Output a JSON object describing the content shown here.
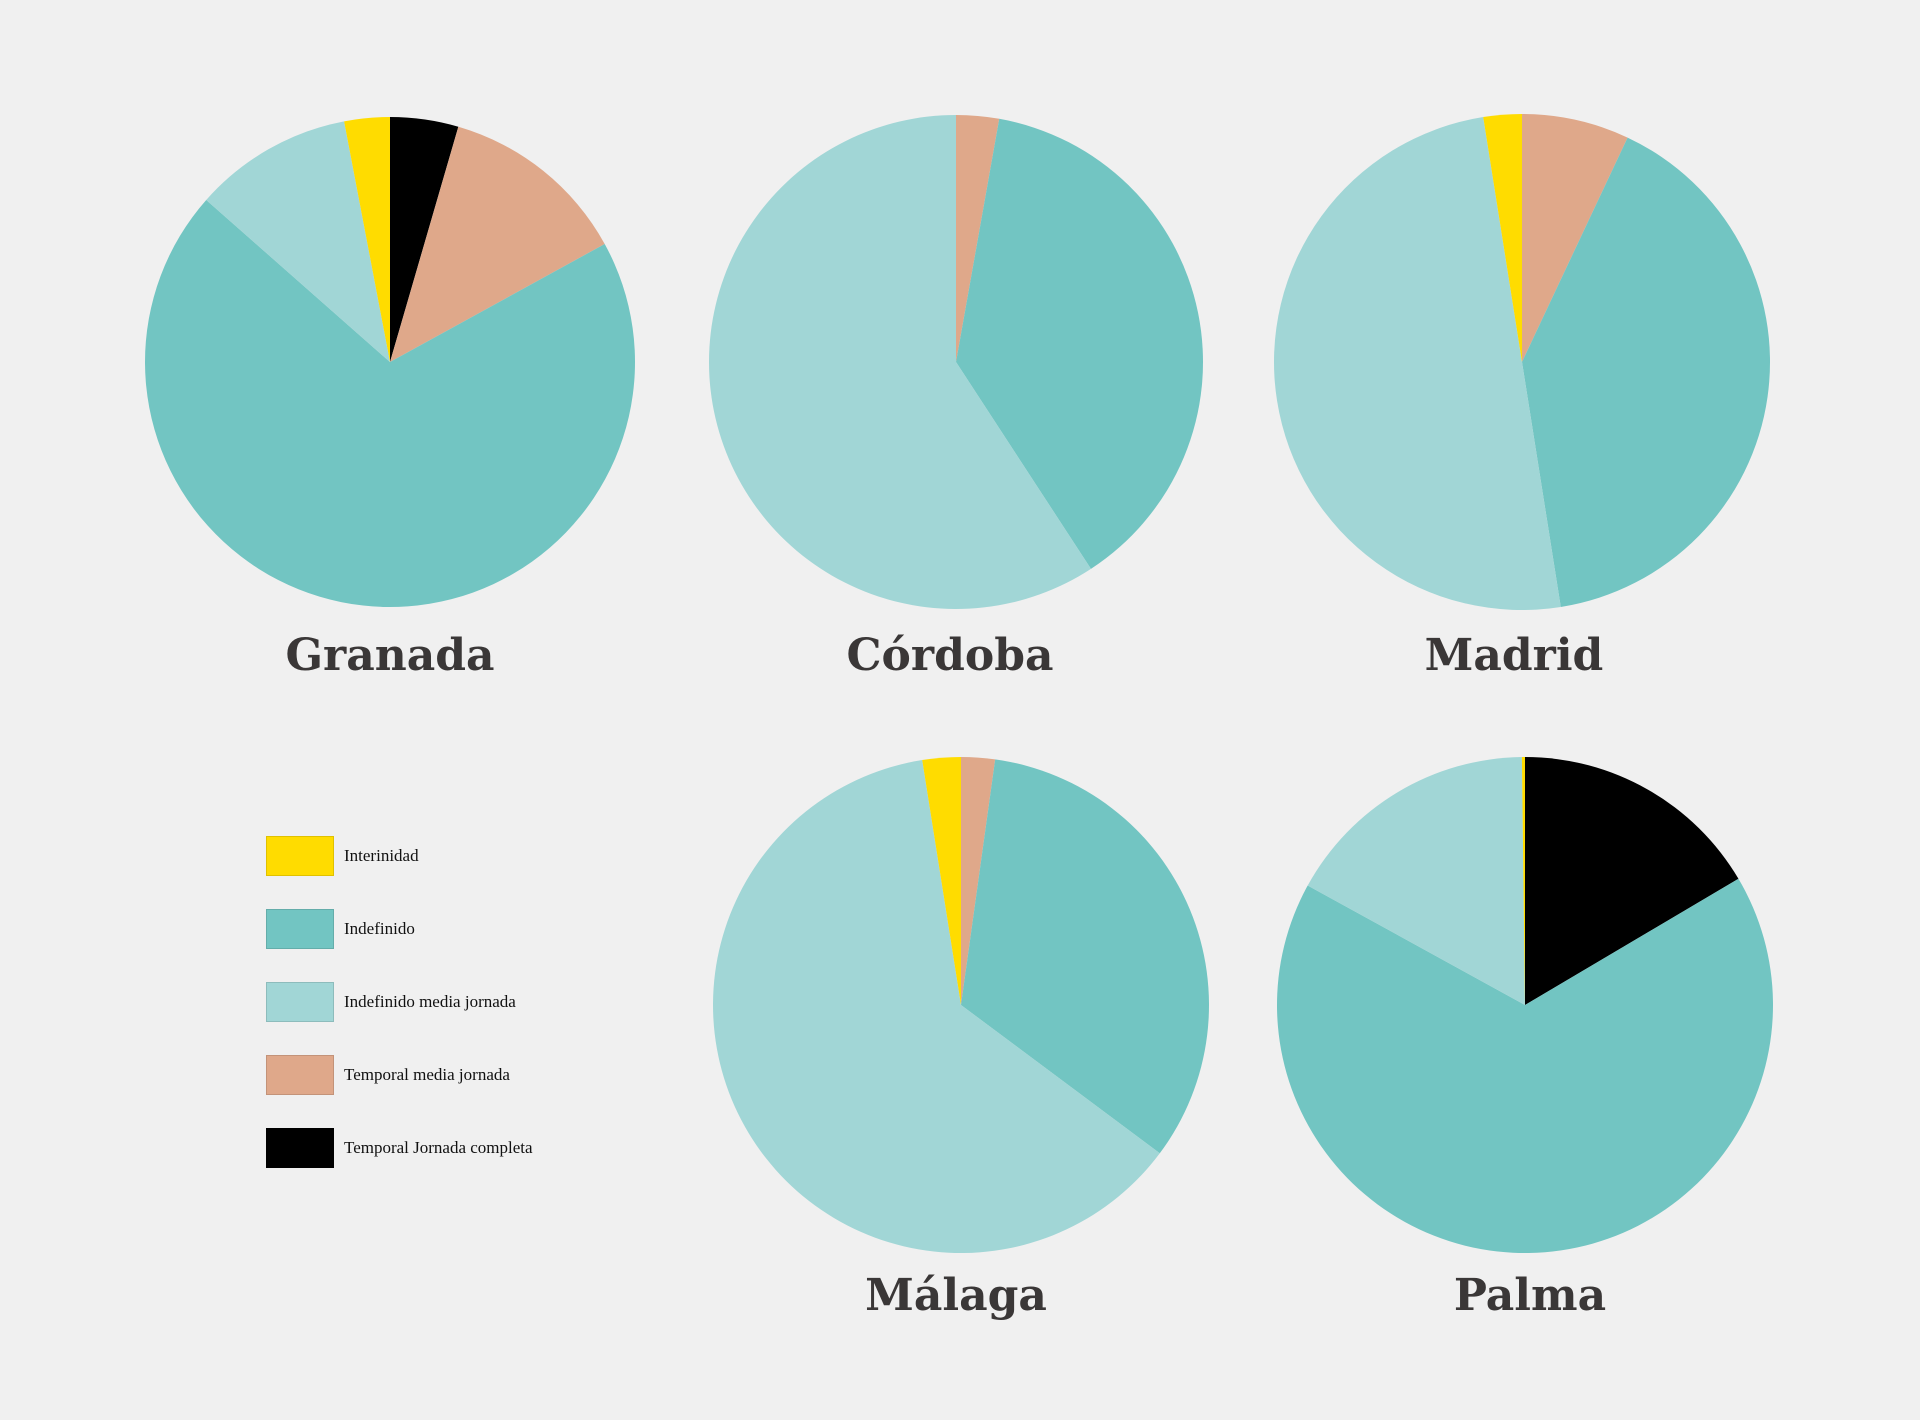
{
  "chart_data": {
    "type": "pie",
    "legend": {
      "placement": "bottom-left",
      "entries": [
        {
          "key": "interinidad",
          "label": "Interinidad",
          "color": "#FFDC00"
        },
        {
          "key": "indefinido",
          "label": "Indefinido",
          "color": "#72C5C2"
        },
        {
          "key": "indefinido_media",
          "label": "Indefinido media jornada",
          "color": "#A1D6D6"
        },
        {
          "key": "temporal_media",
          "label": "Temporal media jornada",
          "color": "#DFA88A"
        },
        {
          "key": "temporal_completa",
          "label": "Temporal Jornada completa",
          "color": "#000000"
        }
      ]
    },
    "pies": [
      {
        "title": "Granada",
        "slices": [
          {
            "key": "temporal_completa",
            "value": 4.5
          },
          {
            "key": "temporal_media",
            "value": 12.5
          },
          {
            "key": "indefinido",
            "value": 69.5
          },
          {
            "key": "indefinido_media",
            "value": 10.5
          },
          {
            "key": "interinidad",
            "value": 3.0
          }
        ]
      },
      {
        "title": "Córdoba",
        "slices": [
          {
            "key": "temporal_media",
            "value": 2.8
          },
          {
            "key": "indefinido",
            "value": 38.0
          },
          {
            "key": "indefinido_media",
            "value": 59.2
          }
        ]
      },
      {
        "title": "Madrid",
        "slices": [
          {
            "key": "temporal_media",
            "value": 7.0
          },
          {
            "key": "indefinido",
            "value": 40.5
          },
          {
            "key": "indefinido_media",
            "value": 50.0
          },
          {
            "key": "interinidad",
            "value": 2.5
          }
        ]
      },
      {
        "title": "Málaga",
        "slices": [
          {
            "key": "temporal_media",
            "value": 2.2
          },
          {
            "key": "indefinido",
            "value": 33.0
          },
          {
            "key": "indefinido_media",
            "value": 62.3
          },
          {
            "key": "interinidad",
            "value": 2.5
          }
        ]
      },
      {
        "title": "Palma",
        "slices": [
          {
            "key": "temporal_completa",
            "value": 16.5
          },
          {
            "key": "indefinido",
            "value": 66.5
          },
          {
            "key": "indefinido_media",
            "value": 16.8
          },
          {
            "key": "interinidad",
            "value": 0.2
          }
        ]
      }
    ]
  }
}
